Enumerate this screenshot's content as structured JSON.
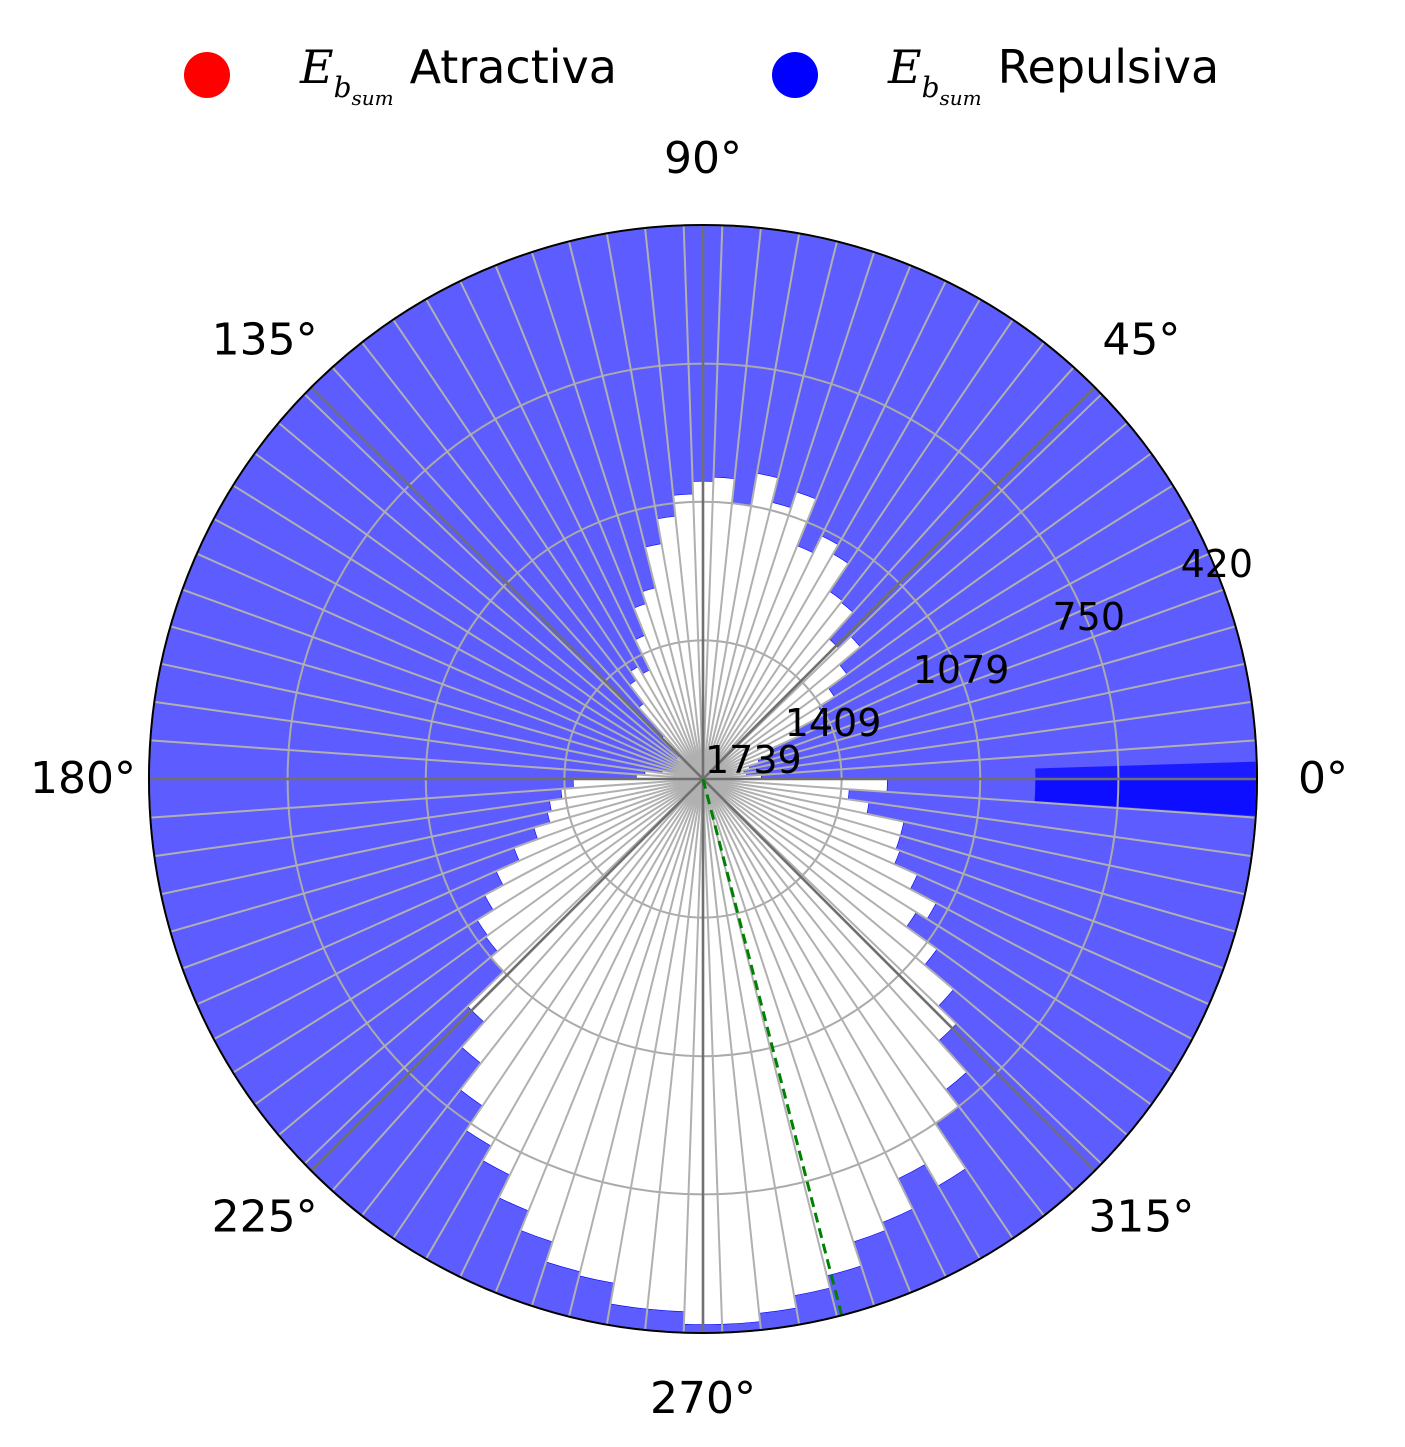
{
  "legend": {
    "items": [
      {
        "symbol": "E",
        "sub1": "b",
        "sub2": "sum",
        "text": "Atractiva",
        "color": "#ff0000"
      },
      {
        "symbol": "E",
        "sub1": "b",
        "sub2": "sum",
        "text": "Repulsiva",
        "color": "#0000ff"
      }
    ]
  },
  "chart_data": {
    "type": "polar-bar",
    "angle_tick_labels": [
      "0°",
      "45°",
      "90°",
      "135°",
      "180°",
      "225°",
      "270°",
      "315°"
    ],
    "radial_tick_labels": [
      "1739",
      "1409",
      "1079",
      "750",
      "420"
    ],
    "radial_axis_inverted": true,
    "radial_range": [
      1739,
      420
    ],
    "bin_width_deg": 4,
    "series": [
      {
        "name": "Repulsiva",
        "color": "#0000ff",
        "bin_start_deg": [
          0,
          4,
          8,
          12,
          16,
          20,
          24,
          28,
          32,
          36,
          40,
          44,
          48,
          52,
          56,
          60,
          64,
          68,
          72,
          76,
          80,
          84,
          88,
          92,
          96,
          100,
          104,
          108,
          112,
          116,
          120,
          124,
          128,
          132,
          136,
          140,
          144,
          148,
          152,
          156,
          160,
          164,
          168,
          172,
          176,
          180,
          184,
          188,
          192,
          196,
          200,
          204,
          208,
          212,
          216,
          220,
          224,
          228,
          232,
          236,
          240,
          244,
          248,
          252,
          256,
          260,
          264,
          268,
          272,
          276,
          280,
          284,
          288,
          292,
          296,
          300,
          304,
          308,
          312,
          316,
          320,
          324,
          328,
          332,
          336,
          340,
          344,
          348,
          352,
          356
        ],
        "values": [
          1600,
          1635,
          1640,
          1625,
          1600,
          1565,
          1490,
          1415,
          1370,
          1315,
          1250,
          1290,
          1205,
          1200,
          1120,
          1095,
          1140,
          1020,
          1060,
          1000,
          1080,
          1020,
          1030,
          1060,
          1110,
          1170,
          1270,
          1300,
          1370,
          1450,
          1430,
          1455,
          1510,
          1600,
          1660,
          1660,
          1700,
          1700,
          1700,
          1690,
          1690,
          1680,
          1640,
          1600,
          1580,
          1430,
          1400,
          1370,
          1360,
          1320,
          1260,
          1200,
          1150,
          1105,
          1100,
          1080,
          960,
          880,
          800,
          730,
          690,
          630,
          580,
          530,
          520,
          470,
          470,
          440,
          440,
          460,
          490,
          520,
          580,
          600,
          680,
          620,
          750,
          800,
          900,
          960,
          1050,
          1140,
          1110,
          1180,
          1240,
          1250,
          1250,
          1340,
          1390,
          1300
        ]
      }
    ],
    "highlight_bin": {
      "start_deg": 356,
      "end_deg": 360,
      "color": "#0000ff"
    },
    "reference_line": {
      "angle_deg": 284.5,
      "color": "#008000",
      "style": "dashed"
    }
  }
}
